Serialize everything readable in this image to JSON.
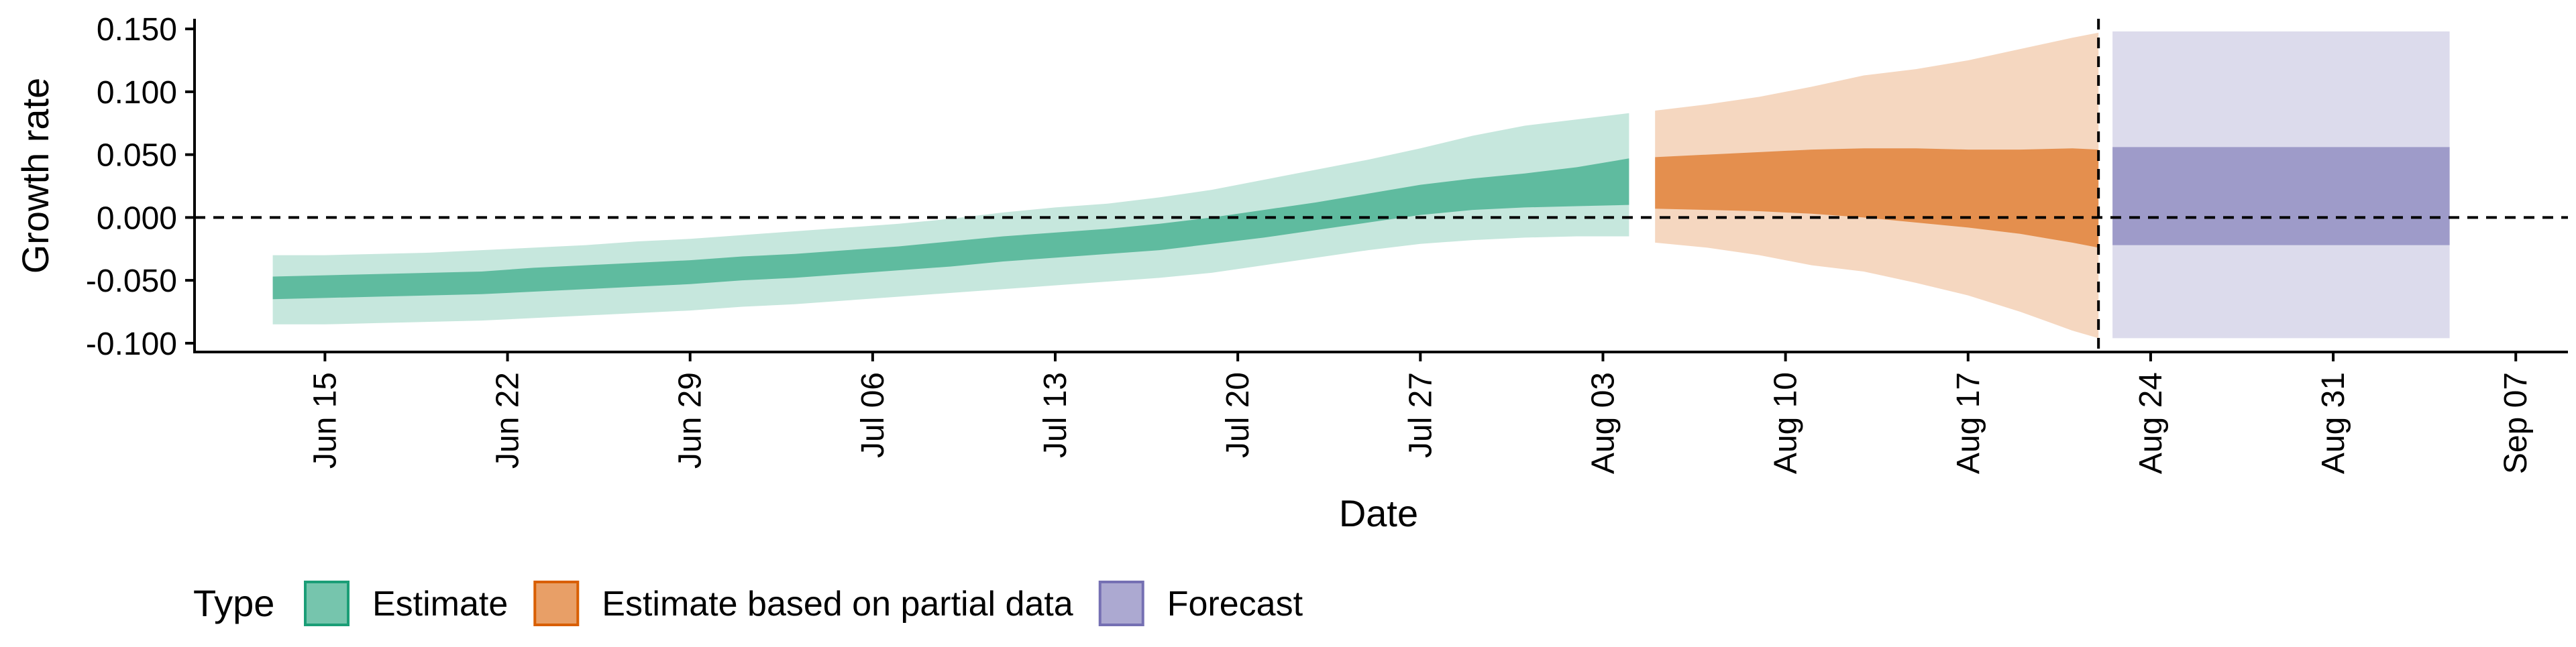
{
  "chart_data": {
    "type": "area",
    "xlabel": "Date",
    "ylabel": "Growth rate",
    "x_ticks": [
      "Jun 15",
      "Jun 22",
      "Jun 29",
      "Jul 06",
      "Jul 13",
      "Jul 20",
      "Jul 27",
      "Aug 03",
      "Aug 10",
      "Aug 17",
      "Aug 24",
      "Aug 31",
      "Sep 07"
    ],
    "x_tick_dates": [
      "2020-06-15",
      "2020-06-22",
      "2020-06-29",
      "2020-07-06",
      "2020-07-13",
      "2020-07-20",
      "2020-07-27",
      "2020-08-03",
      "2020-08-10",
      "2020-08-17",
      "2020-08-24",
      "2020-08-31",
      "2020-09-07"
    ],
    "xlim": [
      "2020-06-10",
      "2020-09-09"
    ],
    "y_ticks": [
      "-0.100",
      "-0.050",
      "0.000",
      "0.050",
      "0.100",
      "0.150"
    ],
    "y_tick_values": [
      -0.1,
      -0.05,
      0.0,
      0.05,
      0.1,
      0.15
    ],
    "ylim": [
      -0.107,
      0.157
    ],
    "reference_lines": {
      "horizontal_y": 0.0,
      "vertical_date": "2020-08-22",
      "style": "dashed"
    },
    "legend": {
      "title": "Type",
      "position": "bottom-left",
      "items": [
        "Estimate",
        "Estimate based on partial data",
        "Forecast"
      ]
    },
    "colors": {
      "Estimate": "#1b9e77",
      "Estimate based on partial data": "#d95f02",
      "Forecast": "#7570b3"
    },
    "series": [
      {
        "name": "Estimate",
        "color": "#1b9e77",
        "points": [
          {
            "date": "2020-06-13",
            "lower_90": -0.085,
            "lower_50": -0.065,
            "upper_50": -0.047,
            "upper_90": -0.03
          },
          {
            "date": "2020-06-15",
            "lower_90": -0.085,
            "lower_50": -0.064,
            "upper_50": -0.046,
            "upper_90": -0.03
          },
          {
            "date": "2020-06-17",
            "lower_90": -0.084,
            "lower_50": -0.063,
            "upper_50": -0.045,
            "upper_90": -0.029
          },
          {
            "date": "2020-06-19",
            "lower_90": -0.083,
            "lower_50": -0.062,
            "upper_50": -0.044,
            "upper_90": -0.028
          },
          {
            "date": "2020-06-21",
            "lower_90": -0.082,
            "lower_50": -0.061,
            "upper_50": -0.043,
            "upper_90": -0.026
          },
          {
            "date": "2020-06-23",
            "lower_90": -0.08,
            "lower_50": -0.059,
            "upper_50": -0.04,
            "upper_90": -0.024
          },
          {
            "date": "2020-06-25",
            "lower_90": -0.078,
            "lower_50": -0.057,
            "upper_50": -0.038,
            "upper_90": -0.022
          },
          {
            "date": "2020-06-27",
            "lower_90": -0.076,
            "lower_50": -0.055,
            "upper_50": -0.036,
            "upper_90": -0.019
          },
          {
            "date": "2020-06-29",
            "lower_90": -0.074,
            "lower_50": -0.053,
            "upper_50": -0.034,
            "upper_90": -0.017
          },
          {
            "date": "2020-07-01",
            "lower_90": -0.071,
            "lower_50": -0.05,
            "upper_50": -0.031,
            "upper_90": -0.014
          },
          {
            "date": "2020-07-03",
            "lower_90": -0.069,
            "lower_50": -0.048,
            "upper_50": -0.029,
            "upper_90": -0.011
          },
          {
            "date": "2020-07-05",
            "lower_90": -0.066,
            "lower_50": -0.045,
            "upper_50": -0.026,
            "upper_90": -0.008
          },
          {
            "date": "2020-07-07",
            "lower_90": -0.063,
            "lower_50": -0.042,
            "upper_50": -0.023,
            "upper_90": -0.005
          },
          {
            "date": "2020-07-09",
            "lower_90": -0.06,
            "lower_50": -0.039,
            "upper_50": -0.019,
            "upper_90": -0.001
          },
          {
            "date": "2020-07-11",
            "lower_90": -0.057,
            "lower_50": -0.035,
            "upper_50": -0.015,
            "upper_90": 0.004
          },
          {
            "date": "2020-07-13",
            "lower_90": -0.054,
            "lower_50": -0.032,
            "upper_50": -0.012,
            "upper_90": 0.008
          },
          {
            "date": "2020-07-15",
            "lower_90": -0.051,
            "lower_50": -0.029,
            "upper_50": -0.009,
            "upper_90": 0.011
          },
          {
            "date": "2020-07-17",
            "lower_90": -0.048,
            "lower_50": -0.026,
            "upper_50": -0.005,
            "upper_90": 0.016
          },
          {
            "date": "2020-07-19",
            "lower_90": -0.044,
            "lower_50": -0.021,
            "upper_50": 0.0,
            "upper_90": 0.022
          },
          {
            "date": "2020-07-21",
            "lower_90": -0.038,
            "lower_50": -0.016,
            "upper_50": 0.006,
            "upper_90": 0.03
          },
          {
            "date": "2020-07-23",
            "lower_90": -0.032,
            "lower_50": -0.01,
            "upper_50": 0.012,
            "upper_90": 0.038
          },
          {
            "date": "2020-07-25",
            "lower_90": -0.026,
            "lower_50": -0.004,
            "upper_50": 0.019,
            "upper_90": 0.046
          },
          {
            "date": "2020-07-27",
            "lower_90": -0.021,
            "lower_50": 0.002,
            "upper_50": 0.026,
            "upper_90": 0.055
          },
          {
            "date": "2020-07-29",
            "lower_90": -0.018,
            "lower_50": 0.006,
            "upper_50": 0.031,
            "upper_90": 0.065
          },
          {
            "date": "2020-07-31",
            "lower_90": -0.016,
            "lower_50": 0.008,
            "upper_50": 0.035,
            "upper_90": 0.073
          },
          {
            "date": "2020-08-02",
            "lower_90": -0.015,
            "lower_50": 0.009,
            "upper_50": 0.04,
            "upper_90": 0.078
          },
          {
            "date": "2020-08-04",
            "lower_90": -0.015,
            "lower_50": 0.01,
            "upper_50": 0.047,
            "upper_90": 0.083
          }
        ]
      },
      {
        "name": "Estimate based on partial data",
        "color": "#d95f02",
        "points": [
          {
            "date": "2020-08-05",
            "lower_90": -0.02,
            "lower_50": 0.007,
            "upper_50": 0.048,
            "upper_90": 0.085
          },
          {
            "date": "2020-08-07",
            "lower_90": -0.024,
            "lower_50": 0.006,
            "upper_50": 0.05,
            "upper_90": 0.09
          },
          {
            "date": "2020-08-09",
            "lower_90": -0.03,
            "lower_50": 0.005,
            "upper_50": 0.052,
            "upper_90": 0.096
          },
          {
            "date": "2020-08-11",
            "lower_90": -0.038,
            "lower_50": 0.003,
            "upper_50": 0.054,
            "upper_90": 0.104
          },
          {
            "date": "2020-08-13",
            "lower_90": -0.043,
            "lower_50": 0.0,
            "upper_50": 0.055,
            "upper_90": 0.113
          },
          {
            "date": "2020-08-15",
            "lower_90": -0.052,
            "lower_50": -0.004,
            "upper_50": 0.055,
            "upper_90": 0.118
          },
          {
            "date": "2020-08-17",
            "lower_90": -0.062,
            "lower_50": -0.008,
            "upper_50": 0.054,
            "upper_90": 0.125
          },
          {
            "date": "2020-08-19",
            "lower_90": -0.075,
            "lower_50": -0.013,
            "upper_50": 0.054,
            "upper_90": 0.134
          },
          {
            "date": "2020-08-21",
            "lower_90": -0.09,
            "lower_50": -0.02,
            "upper_50": 0.055,
            "upper_90": 0.143
          },
          {
            "date": "2020-08-22",
            "lower_90": -0.096,
            "lower_50": -0.024,
            "upper_50": 0.054,
            "upper_90": 0.147
          }
        ]
      },
      {
        "name": "Forecast",
        "color": "#7570b3",
        "points": [
          {
            "date": "2020-08-23",
            "lower_90": -0.096,
            "lower_50": -0.022,
            "upper_50": 0.056,
            "upper_90": 0.148
          },
          {
            "date": "2020-09-04",
            "lower_90": -0.096,
            "lower_50": -0.022,
            "upper_50": 0.056,
            "upper_90": 0.148
          }
        ]
      }
    ]
  }
}
